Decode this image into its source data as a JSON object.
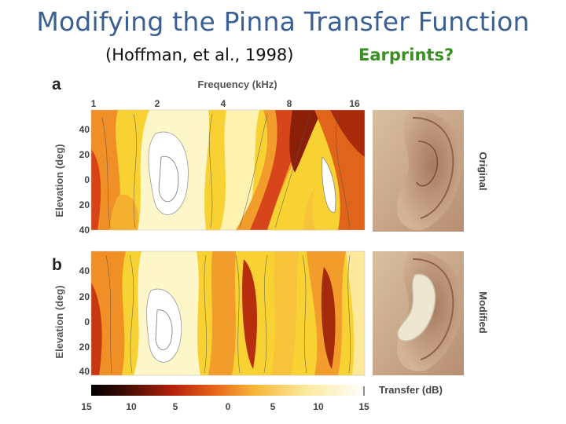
{
  "slide": {
    "title": "Modifying the Pinna Transfer Function",
    "citation": "(Hoffman, et al., 1998)",
    "question": "Earprints?"
  },
  "figure": {
    "panel_a": "a",
    "panel_b": "b",
    "top_axis_label": "Frequency (kHz)",
    "frequency_ticks": [
      "1",
      "2",
      "4",
      "8",
      "16"
    ],
    "elevation_axis_label": "Elevation (deg)",
    "elevation_ticks": [
      "40",
      "20",
      "0",
      "20",
      "40"
    ],
    "photo_top_label": "Original",
    "photo_bottom_label": "Modified",
    "colorbar_label": "Transfer (dB)",
    "colorbar_ticks": [
      "15",
      "10",
      "5",
      "0",
      "5",
      "10",
      "15"
    ]
  },
  "colors": {
    "title": "#3a5f93",
    "question": "#3b8f22",
    "heatmap_low": "#ffffff",
    "heatmap_mid": "#f4c400",
    "heatmap_high": "#7a1a06"
  }
}
